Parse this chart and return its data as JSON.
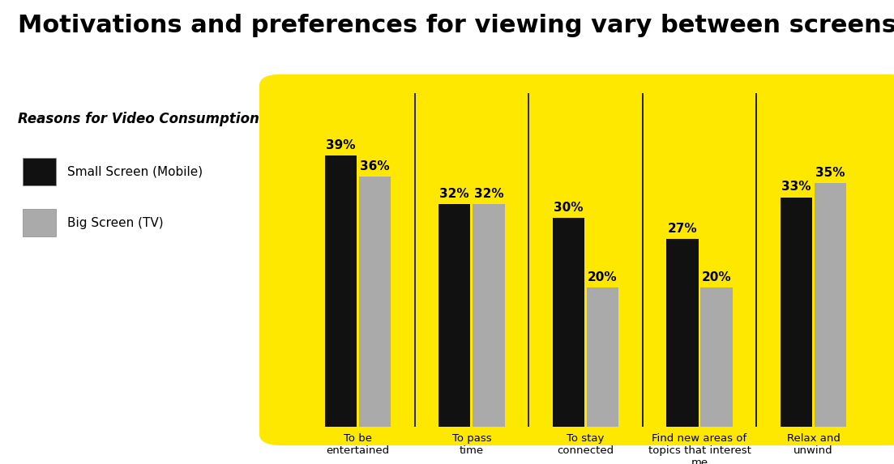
{
  "title": "Motivations and preferences for viewing vary between screens",
  "legend_title": "Reasons for Video Consumption",
  "legend_items": [
    "Small Screen (Mobile)",
    "Big Screen (TV)"
  ],
  "categories": [
    "To be\nentertained",
    "To pass\ntime",
    "To stay\nconnected",
    "Find new areas of\ntopics that interest\nme",
    "Relax and\nunwind"
  ],
  "small_screen": [
    39,
    32,
    30,
    27,
    33
  ],
  "big_screen": [
    36,
    32,
    20,
    20,
    35
  ],
  "bar_color_small": "#111111",
  "bar_color_big": "#aaaaaa",
  "background_color": "#ffffff",
  "chart_bg_color": "#FFE800",
  "title_fontsize": 22,
  "bar_label_fontsize": 11,
  "legend_fontsize": 11,
  "legend_title_fontsize": 12,
  "xlabel_fontsize": 9.5,
  "ylim": [
    0,
    48
  ]
}
